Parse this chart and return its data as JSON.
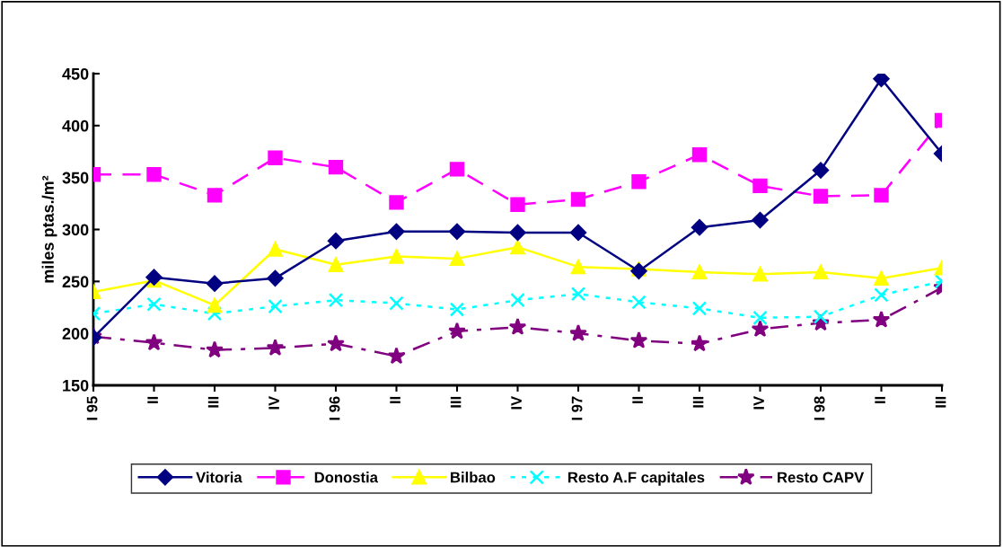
{
  "chart_data": {
    "type": "line",
    "ylabel": "miles ptas./m²",
    "categories": [
      "I 95",
      "II",
      "III",
      "IV",
      "I 96",
      "II",
      "III",
      "IV",
      "I 97",
      "II",
      "III",
      "IV",
      "I 98",
      "II",
      "III"
    ],
    "ylim": [
      150,
      450
    ],
    "yticks": [
      150,
      200,
      250,
      300,
      350,
      400,
      450
    ],
    "grid": false,
    "legend": "bottom",
    "series": [
      {
        "name": "Vitoria",
        "color": "#000080",
        "marker": "diamond",
        "line_style": "solid",
        "values": [
          196,
          254,
          248,
          253,
          289,
          298,
          298,
          297,
          297,
          260,
          302,
          309,
          357,
          445,
          373
        ]
      },
      {
        "name": "Donostia",
        "color": "#ff00ff",
        "marker": "square",
        "line_style": "dashed",
        "values": [
          353,
          353,
          333,
          369,
          360,
          326,
          358,
          324,
          329,
          346,
          372,
          342,
          332,
          333,
          405
        ]
      },
      {
        "name": "Bilbao",
        "color": "#ffff00",
        "marker": "triangle",
        "line_style": "solid",
        "values": [
          240,
          251,
          227,
          281,
          266,
          274,
          272,
          283,
          264,
          262,
          259,
          257,
          259,
          253,
          263
        ]
      },
      {
        "name": "Resto A.F capitales",
        "color": "#00ffff",
        "marker": "cross",
        "line_style": "dotted",
        "values": [
          219,
          228,
          219,
          226,
          232,
          229,
          223,
          232,
          238,
          230,
          224,
          215,
          216,
          237,
          250
        ]
      },
      {
        "name": "Resto CAPV",
        "color": "#800080",
        "marker": "star",
        "line_style": "dashdot",
        "values": [
          197,
          191,
          184,
          186,
          190,
          178,
          202,
          206,
          200,
          193,
          190,
          204,
          210,
          213,
          244
        ]
      }
    ]
  }
}
